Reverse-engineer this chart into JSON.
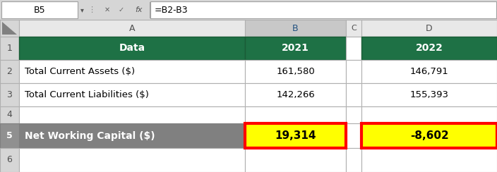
{
  "formula_bar_cell": "B5",
  "formula_bar_formula": "=B2-B3",
  "header_row": {
    "A": "Data",
    "B": "2021",
    "D": "2022"
  },
  "row2": {
    "A": "Total Current Assets ($)",
    "B": "161,580",
    "D": "146,791"
  },
  "row3": {
    "A": "Total Current Liabilities ($)",
    "B": "142,266",
    "D": "155,393"
  },
  "row5": {
    "A": "Net Working Capital ($)",
    "B": "19,314",
    "D": "-8,602"
  },
  "green_color": "#1E7145",
  "yellow_color": "#FFFF00",
  "red_border_color": "#FF0000",
  "white": "#FFFFFF",
  "bg_color": "#D6D6D6",
  "row_num_bg": "#D6D6D6",
  "gray_row5": "#808080",
  "col_b_header_bg": "#C8C8C8",
  "cell_border": "#B0B0B0",
  "black": "#000000",
  "dark_gray_text": "#404040",
  "col_header_bg": "#E8E8E8",
  "formula_white": "#FFFFFF",
  "dark_green": "#1E7145",
  "row5_num_bg": "#909090"
}
